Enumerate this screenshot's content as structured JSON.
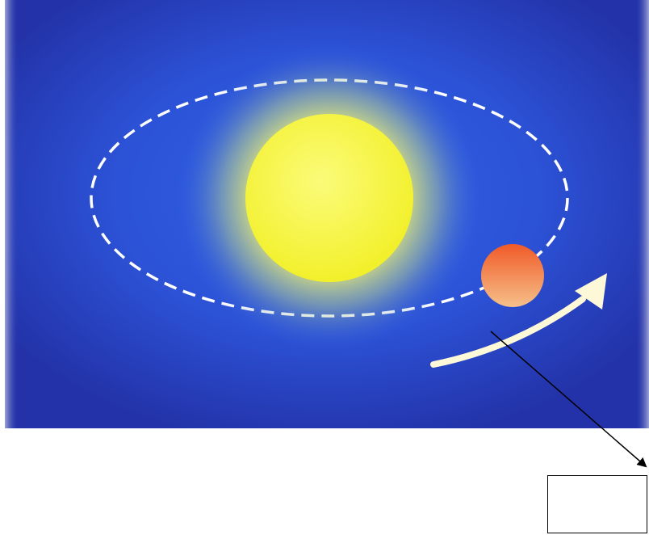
{
  "diagram": {
    "background_edge_color": "#2332a8",
    "background_center_color": "#2f63e8",
    "orbit_color": "#ffffff",
    "sun": {
      "icon": "sun-icon",
      "core_color": "#f2f02a",
      "glow_color": "#f6f36a"
    },
    "planet": {
      "icon": "planet-icon",
      "color_top": "#f05a28",
      "color_bottom": "#f6c08a"
    },
    "motion_arrow": {
      "icon": "curved-arrow-icon",
      "color": "#fdf8d8"
    },
    "pointer_line_color": "#000000",
    "answer_box": {
      "text": ""
    }
  }
}
